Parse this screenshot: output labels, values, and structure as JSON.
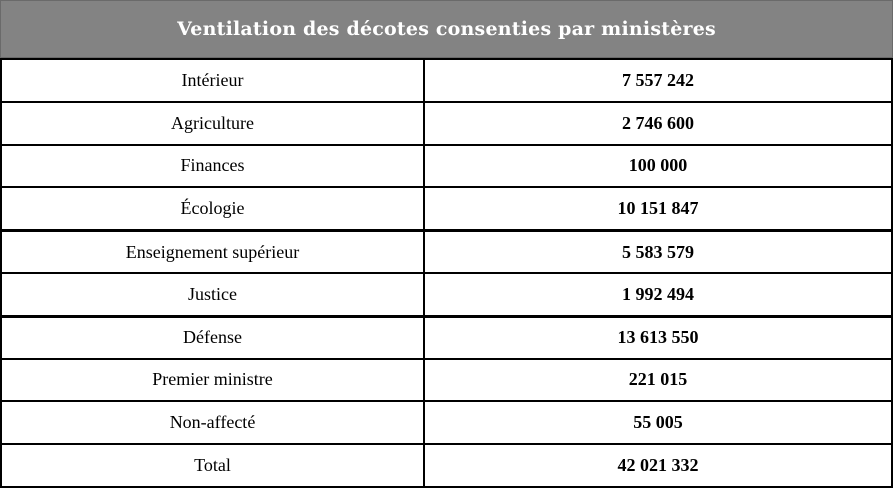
{
  "table": {
    "title": "Ventilation des décotes consenties par ministères",
    "rows": [
      {
        "label": "Intérieur",
        "value": "7 557 242"
      },
      {
        "label": "Agriculture",
        "value": "2 746 600"
      },
      {
        "label": "Finances",
        "value": "100 000"
      },
      {
        "label": "Écologie",
        "value": "10 151 847"
      },
      {
        "label": "Enseignement supérieur",
        "value": "5 583 579"
      },
      {
        "label": "Justice",
        "value": "1 992 494"
      },
      {
        "label": "Défense",
        "value": "13 613 550"
      },
      {
        "label": "Premier ministre",
        "value": "221 015"
      },
      {
        "label": "Non-affecté",
        "value": "55 005"
      },
      {
        "label": "Total",
        "value": "42 021 332"
      }
    ]
  },
  "chart_data": {
    "type": "table",
    "title": "Ventilation des décotes consenties par ministères",
    "categories": [
      "Intérieur",
      "Agriculture",
      "Finances",
      "Écologie",
      "Enseignement supérieur",
      "Justice",
      "Défense",
      "Premier ministre",
      "Non-affecté",
      "Total"
    ],
    "values": [
      7557242,
      2746600,
      100000,
      10151847,
      5583579,
      1992494,
      13613550,
      221015,
      55005,
      42021332
    ]
  },
  "colors": {
    "header_bg": "#838383",
    "header_text": "#ffffff",
    "border": "#000000",
    "row_bg": "#ffffff",
    "row_text": "#000000"
  }
}
